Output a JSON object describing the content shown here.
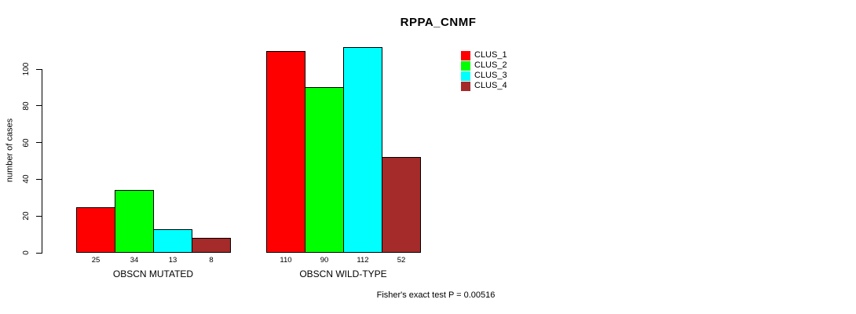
{
  "chart_data": {
    "type": "bar",
    "title": "RPPA_CNMF",
    "ylabel": "number of cases",
    "xlabel": "",
    "yticks": [
      0,
      20,
      40,
      60,
      80,
      100
    ],
    "ylim": [
      0,
      112
    ],
    "grid": false,
    "legend_position": "top-right",
    "categories": [
      "OBSCN MUTATED",
      "OBSCN WILD-TYPE"
    ],
    "series": [
      {
        "name": "CLUS_1",
        "color": "#ff0000",
        "values": [
          25,
          110
        ]
      },
      {
        "name": "CLUS_2",
        "color": "#00ff00",
        "values": [
          34,
          90
        ]
      },
      {
        "name": "CLUS_3",
        "color": "#00ffff",
        "values": [
          13,
          112
        ]
      },
      {
        "name": "CLUS_4",
        "color": "#a52a2a",
        "values": [
          8,
          52
        ]
      }
    ],
    "bar_value_labels_shown": true,
    "annotation": "Fisher's exact test P = 0.00516"
  }
}
